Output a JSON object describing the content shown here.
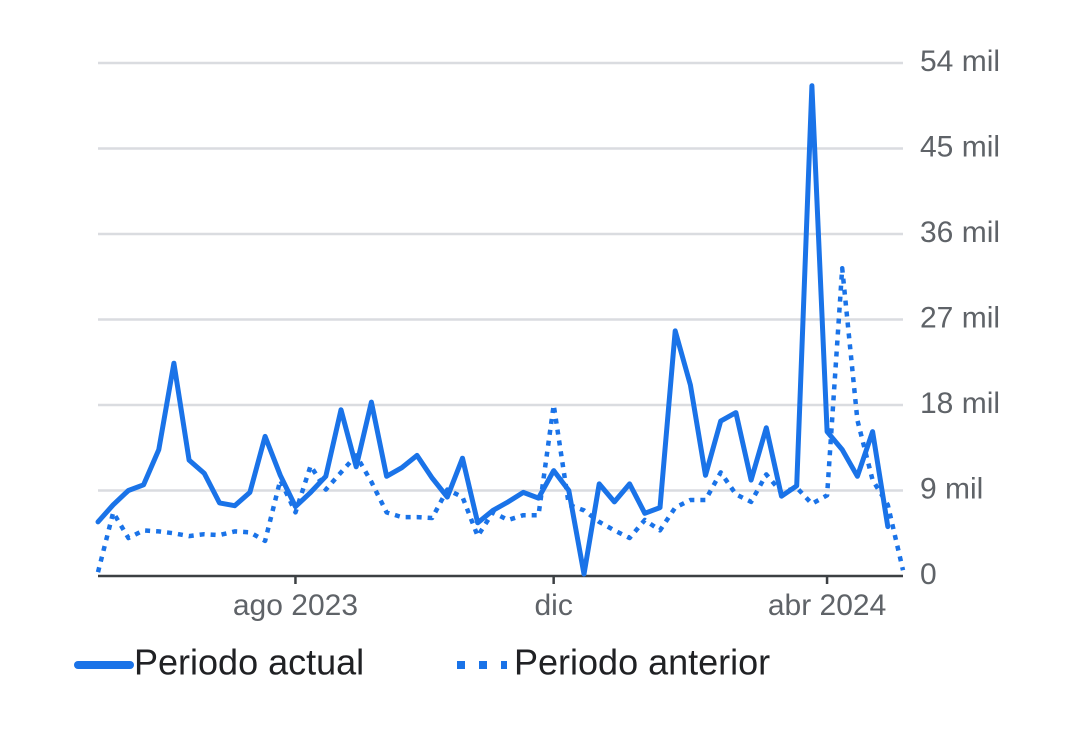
{
  "chart_data": {
    "type": "line",
    "categories": [
      null,
      null,
      null,
      null,
      null,
      null,
      null,
      null,
      null,
      null,
      null,
      null,
      null,
      "ago 2023",
      null,
      null,
      null,
      null,
      null,
      null,
      null,
      null,
      null,
      null,
      null,
      null,
      null,
      null,
      null,
      null,
      "dic",
      null,
      null,
      null,
      null,
      null,
      null,
      null,
      null,
      null,
      null,
      null,
      null,
      null,
      null,
      null,
      null,
      null,
      "abr 2024",
      null,
      null,
      null,
      null,
      null
    ],
    "series": [
      {
        "name": "Periodo actual",
        "color": "#1a73e8",
        "dash": "solid",
        "values": [
          5.7,
          7.5,
          9.0,
          9.6,
          13.3,
          22.4,
          12.2,
          10.8,
          7.7,
          7.4,
          8.8,
          14.7,
          10.6,
          7.3,
          8.8,
          10.5,
          17.5,
          11.5,
          18.3,
          10.5,
          11.4,
          12.7,
          10.3,
          8.3,
          12.4,
          5.6,
          6.9,
          7.8,
          8.8,
          8.2,
          11.1,
          9.0,
          0.2,
          9.7,
          7.8,
          9.7,
          6.6,
          7.2,
          25.8,
          20.1,
          10.6,
          16.3,
          17.2,
          10.1,
          15.6,
          8.4,
          9.5,
          51.6,
          15.2,
          13.3,
          10.5,
          15.2,
          5.2,
          null
        ]
      },
      {
        "name": "Periodo anterior",
        "color": "#1a73e8",
        "dash": "dotted",
        "values": [
          0.4,
          6.7,
          4.0,
          4.8,
          4.7,
          4.5,
          4.2,
          4.4,
          4.3,
          4.7,
          4.6,
          3.7,
          10.1,
          6.7,
          11.6,
          9.1,
          10.9,
          12.7,
          9.9,
          6.7,
          6.2,
          6.2,
          6.1,
          9.1,
          8.3,
          4.2,
          6.7,
          5.9,
          6.4,
          6.4,
          18.0,
          7.5,
          6.9,
          5.7,
          4.8,
          4.0,
          5.9,
          4.8,
          7.2,
          8.0,
          8.0,
          10.9,
          8.6,
          7.8,
          10.7,
          8.8,
          9.3,
          7.6,
          8.5,
          32.4,
          16.4,
          10.1,
          7.5,
          0.6
        ]
      }
    ],
    "ylim": [
      0,
      54
    ],
    "yticks": [
      0,
      {
        "value": 9,
        "label": "9 mil"
      },
      {
        "value": 18,
        "label": "18 mil"
      },
      {
        "value": 27,
        "label": "27 mil"
      },
      {
        "value": 36,
        "label": "36 mil"
      },
      {
        "value": 45,
        "label": "45 mil"
      },
      {
        "value": 54,
        "label": "54 mil"
      }
    ],
    "grid": true,
    "legend": "bottom"
  }
}
